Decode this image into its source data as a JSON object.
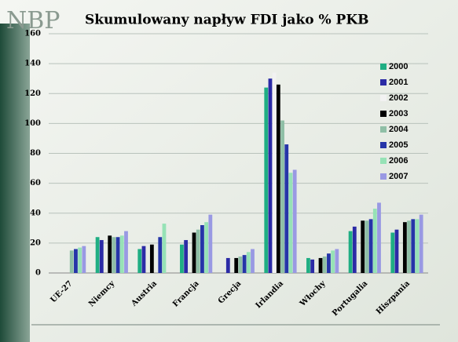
{
  "header": {
    "logo": "NBP"
  },
  "chart_data": {
    "type": "bar",
    "title": "Skumulowany napływ FDI jako % PKB",
    "categories": [
      "UE-27",
      "Niemcy",
      "Austria",
      "Francja",
      "Grecja",
      "Irlandia",
      "Włochy",
      "Portugalia",
      "Hiszpania"
    ],
    "series": [
      {
        "name": "2000",
        "color": "#1fae83",
        "values": [
          null,
          24,
          16,
          19,
          null,
          124,
          10,
          28,
          27
        ]
      },
      {
        "name": "2001",
        "color": "#2b2ba6",
        "values": [
          null,
          22,
          18,
          22,
          10,
          130,
          9,
          31,
          29
        ]
      },
      {
        "name": "2002",
        "color": "#f2f2f2",
        "values": [
          null,
          null,
          null,
          null,
          null,
          134,
          null,
          null,
          null
        ]
      },
      {
        "name": "2003",
        "color": "#000000",
        "values": [
          null,
          25,
          19,
          27,
          10,
          126,
          10,
          35,
          34
        ]
      },
      {
        "name": "2004",
        "color": "#8fbfa6",
        "values": [
          15,
          24,
          null,
          29,
          11,
          102,
          11,
          35,
          35
        ]
      },
      {
        "name": "2005",
        "color": "#2535a8",
        "values": [
          16,
          24,
          24,
          32,
          12,
          86,
          13,
          36,
          36
        ]
      },
      {
        "name": "2006",
        "color": "#96e2b6",
        "values": [
          17,
          25,
          33,
          34,
          14,
          67,
          15,
          43,
          36
        ]
      },
      {
        "name": "2007",
        "color": "#9999e3",
        "values": [
          18,
          28,
          null,
          39,
          16,
          69,
          16,
          47,
          39
        ]
      }
    ],
    "ylim": [
      0,
      160
    ],
    "yticks": [
      0,
      20,
      40,
      60,
      80,
      100,
      120,
      140,
      160
    ],
    "grid": true,
    "legend": "right"
  }
}
